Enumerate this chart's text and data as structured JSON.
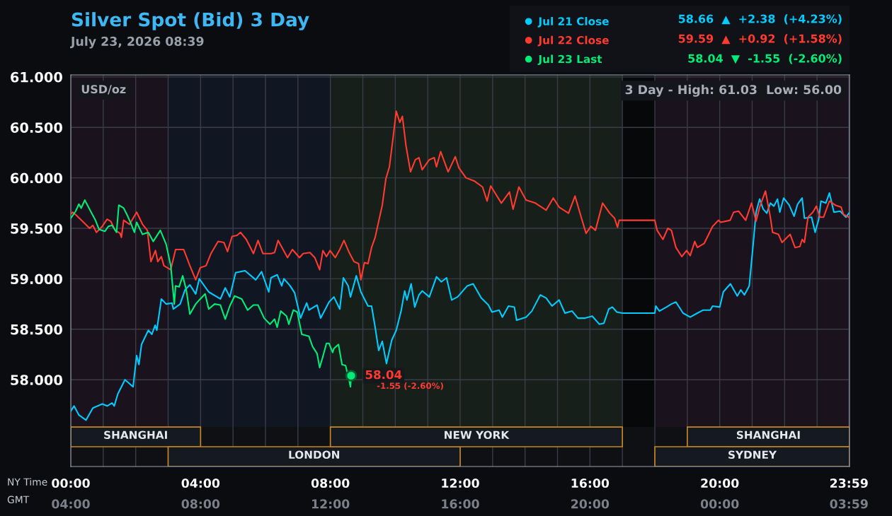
{
  "chart_data": {
    "type": "line",
    "title": "Silver Spot (Bid) 3 Day",
    "subtitle": "July 23, 2026 08:39",
    "xlabel": "NY Time",
    "x2label": "GMT",
    "annotations": [
      "USD/oz",
      "3 Day - High: 61.03  Low: 56.00",
      "58.66  ▲  +2.38  (+4.23%)",
      "59.59  ▲  +0.92  (+1.58%)",
      "58.04  ▼  -1.55  (-2.60%)",
      {
        "text": "58.04",
        "x": 8.64,
        "y": 58.04
      },
      "-1.55 (-2.60%)"
    ],
    "series": [
      {
        "name": "Jul 21 Close",
        "color": "#00ccff",
        "x": [
          0,
          0.1,
          0.25,
          0.47,
          0.68,
          0.97,
          1.12,
          1.27,
          1.34,
          1.45,
          1.67,
          1.92,
          2.03,
          2.1,
          2.18,
          2.39,
          2.5,
          2.6,
          2.65,
          2.79,
          2.94,
          3.12,
          3.16,
          3.37,
          3.52,
          3.67,
          3.85,
          3.96,
          4.25,
          4.61,
          4.76,
          4.9,
          5.08,
          5.37,
          5.7,
          5.88,
          6.1,
          6.17,
          6.36,
          6.5,
          6.57,
          6.76,
          6.9,
          7.08,
          7.27,
          7.34,
          7.59,
          7.7,
          7.96,
          8.11,
          8.29,
          8.4,
          8.55,
          8.62,
          8.8,
          8.94,
          9.16,
          9.27,
          9.38,
          9.49,
          9.6,
          9.73,
          9.89,
          10.03,
          10.18,
          10.29,
          10.36,
          10.49,
          10.6,
          10.73,
          10.83,
          11.05,
          11.27,
          11.42,
          11.58,
          11.74,
          11.92,
          12.22,
          12.4,
          12.65,
          12.87,
          12.98,
          13.2,
          13.3,
          13.49,
          13.67,
          13.74,
          14.03,
          14.21,
          14.47,
          14.65,
          14.83,
          15.05,
          15.23,
          15.45,
          15.63,
          15.85,
          16.07,
          16.29,
          16.43,
          16.58,
          16.69,
          16.83,
          17.0,
          18.0,
          18.03,
          18.14,
          18.36,
          18.51,
          18.65,
          18.87,
          19.09,
          19.31,
          19.49,
          19.71,
          19.78,
          20.0,
          20.11,
          20.33,
          20.54,
          20.65,
          20.76,
          20.91,
          21.01,
          21.12,
          21.23,
          21.34,
          21.45,
          21.56,
          21.67,
          21.78,
          21.85,
          21.97,
          22.14,
          22.29,
          22.4,
          22.54,
          22.61,
          22.83,
          22.94,
          23.05,
          23.12,
          23.27,
          23.38,
          23.52,
          23.71,
          23.89,
          23.98
        ],
        "values": [
          57.69,
          57.74,
          57.65,
          57.6,
          57.72,
          57.76,
          57.74,
          57.77,
          57.74,
          57.86,
          58.0,
          57.93,
          58.24,
          58.15,
          58.35,
          58.49,
          58.45,
          58.54,
          58.49,
          58.8,
          58.75,
          58.76,
          58.7,
          58.75,
          58.89,
          58.94,
          58.85,
          59.0,
          58.87,
          58.8,
          58.91,
          58.82,
          59.06,
          59.08,
          58.99,
          59.07,
          58.87,
          59.01,
          59.04,
          58.93,
          59.0,
          58.93,
          58.86,
          58.61,
          58.76,
          58.69,
          58.74,
          58.61,
          58.77,
          58.82,
          58.7,
          59.01,
          58.93,
          58.82,
          59.03,
          58.87,
          58.73,
          58.73,
          58.52,
          58.29,
          58.38,
          58.16,
          58.39,
          58.49,
          58.68,
          58.88,
          58.79,
          58.95,
          58.72,
          58.84,
          58.88,
          58.82,
          59.02,
          58.97,
          59.01,
          58.79,
          58.82,
          58.93,
          58.95,
          58.81,
          58.74,
          58.67,
          58.69,
          58.62,
          58.73,
          58.72,
          58.59,
          58.62,
          58.68,
          58.84,
          58.81,
          58.73,
          58.79,
          58.66,
          58.68,
          58.61,
          58.61,
          58.63,
          58.55,
          58.56,
          58.7,
          58.72,
          58.67,
          58.66,
          58.66,
          58.73,
          58.68,
          58.72,
          58.75,
          58.77,
          58.66,
          58.62,
          58.66,
          58.69,
          58.69,
          58.73,
          58.72,
          58.87,
          58.95,
          58.83,
          58.89,
          58.84,
          58.93,
          59.27,
          59.66,
          59.79,
          59.69,
          59.65,
          59.75,
          59.72,
          59.79,
          59.66,
          59.8,
          59.73,
          59.62,
          59.74,
          59.8,
          59.6,
          59.61,
          59.46,
          59.59,
          59.77,
          59.75,
          59.85,
          59.66,
          59.67,
          59.61,
          59.65
        ]
      },
      {
        "name": "Jul 22 Close",
        "color": "#ff3b30",
        "x": [
          0,
          0.06,
          0.17,
          0.36,
          0.58,
          0.68,
          0.79,
          0.97,
          1.12,
          1.23,
          1.37,
          1.52,
          1.56,
          1.63,
          1.81,
          1.92,
          2.03,
          2.21,
          2.36,
          2.47,
          2.61,
          2.68,
          2.79,
          2.87,
          3.08,
          3.23,
          3.3,
          3.48,
          3.67,
          3.85,
          3.99,
          4.17,
          4.32,
          4.54,
          4.72,
          4.83,
          4.97,
          5.12,
          5.23,
          5.41,
          5.63,
          5.77,
          5.92,
          6.17,
          6.28,
          6.39,
          6.68,
          6.83,
          7.05,
          7.16,
          7.37,
          7.52,
          7.67,
          7.77,
          7.88,
          7.99,
          8.15,
          8.29,
          8.42,
          8.58,
          8.73,
          8.87,
          8.94,
          9.05,
          9.16,
          9.27,
          9.38,
          9.49,
          9.6,
          9.71,
          9.82,
          9.93,
          10.03,
          10.14,
          10.22,
          10.33,
          10.47,
          10.62,
          10.73,
          10.83,
          11.05,
          11.2,
          11.27,
          11.4,
          11.63,
          11.85,
          11.96,
          12.18,
          12.43,
          12.69,
          12.83,
          12.94,
          13.27,
          13.52,
          13.63,
          13.81,
          14.03,
          14.32,
          14.65,
          14.87,
          15.05,
          15.34,
          15.54,
          15.74,
          15.88,
          16.03,
          16.17,
          16.39,
          16.61,
          16.76,
          16.85,
          16.9,
          17.0,
          18.0,
          18.07,
          18.25,
          18.4,
          18.51,
          18.65,
          18.83,
          18.98,
          19.09,
          19.23,
          19.31,
          19.52,
          19.78,
          19.96,
          20.03,
          20.32,
          20.43,
          20.58,
          20.8,
          20.98,
          21.12,
          21.23,
          21.41,
          21.56,
          21.63,
          21.81,
          21.92,
          22.17,
          22.32,
          22.47,
          22.54,
          22.61,
          22.72,
          22.87,
          22.98,
          23.09,
          23.2,
          23.38,
          23.56,
          23.74,
          23.81,
          23.98
        ],
        "values": [
          59.64,
          59.66,
          59.63,
          59.57,
          59.5,
          59.53,
          59.46,
          59.52,
          59.59,
          59.57,
          59.48,
          59.45,
          59.41,
          59.58,
          59.54,
          59.6,
          59.66,
          59.54,
          59.48,
          59.17,
          59.28,
          59.17,
          59.22,
          59.13,
          59.09,
          59.29,
          59.29,
          59.29,
          59.13,
          58.99,
          59.11,
          59.13,
          59.25,
          59.37,
          59.36,
          59.27,
          59.42,
          59.43,
          59.46,
          59.39,
          59.25,
          59.38,
          59.25,
          59.25,
          59.26,
          59.38,
          59.21,
          59.29,
          59.21,
          59.25,
          59.26,
          59.21,
          59.09,
          59.28,
          59.22,
          59.28,
          59.21,
          59.29,
          59.38,
          59.26,
          59.17,
          59.15,
          58.99,
          59.16,
          59.15,
          59.31,
          59.41,
          59.57,
          59.73,
          59.99,
          60.11,
          60.39,
          60.66,
          60.55,
          60.61,
          60.32,
          60.06,
          60.18,
          60.2,
          60.08,
          60.18,
          60.2,
          60.11,
          60.26,
          60.06,
          60.21,
          60.1,
          60.0,
          59.97,
          59.91,
          59.77,
          59.92,
          59.75,
          59.86,
          59.69,
          59.91,
          59.78,
          59.75,
          59.68,
          59.8,
          59.71,
          59.65,
          59.82,
          59.6,
          59.45,
          59.52,
          59.48,
          59.75,
          59.65,
          59.6,
          59.51,
          59.58,
          59.58,
          59.58,
          59.48,
          59.39,
          59.5,
          59.48,
          59.31,
          59.22,
          59.28,
          59.23,
          59.37,
          59.31,
          59.35,
          59.52,
          59.58,
          59.56,
          59.58,
          59.66,
          59.67,
          59.58,
          59.75,
          59.57,
          59.71,
          59.87,
          59.61,
          59.46,
          59.44,
          59.36,
          59.44,
          59.31,
          59.32,
          59.39,
          59.36,
          59.61,
          59.66,
          59.72,
          59.61,
          59.61,
          59.77,
          59.73,
          59.71,
          59.64,
          59.61
        ]
      },
      {
        "name": "Jul 23 Last",
        "color": "#00ee77",
        "x": [
          0,
          0.15,
          0.25,
          0.32,
          0.43,
          0.61,
          0.76,
          0.87,
          1.05,
          1.16,
          1.27,
          1.41,
          1.48,
          1.63,
          1.74,
          1.85,
          1.96,
          2.03,
          2.21,
          2.39,
          2.54,
          2.76,
          2.94,
          3.08,
          3.19,
          3.23,
          3.34,
          3.45,
          3.56,
          3.67,
          3.85,
          3.96,
          4.14,
          4.25,
          4.43,
          4.61,
          4.76,
          4.9,
          5.05,
          5.27,
          5.45,
          5.63,
          5.77,
          5.96,
          6.14,
          6.28,
          6.36,
          6.47,
          6.65,
          6.72,
          6.86,
          6.98,
          7.12,
          7.34,
          7.45,
          7.59,
          7.67,
          7.77,
          7.88,
          7.96,
          8.07,
          8.11,
          8.25,
          8.36,
          8.47,
          8.58,
          8.62,
          8.64
        ],
        "values": [
          59.6,
          59.67,
          59.74,
          59.7,
          59.78,
          59.67,
          59.58,
          59.49,
          59.47,
          59.52,
          59.53,
          59.46,
          59.73,
          59.7,
          59.63,
          59.55,
          59.46,
          59.56,
          59.44,
          59.46,
          59.37,
          59.48,
          59.34,
          59.13,
          58.75,
          58.93,
          58.92,
          59.03,
          58.89,
          58.65,
          58.75,
          58.79,
          58.85,
          58.7,
          58.75,
          58.74,
          58.6,
          58.73,
          58.83,
          58.8,
          58.69,
          58.74,
          58.74,
          58.61,
          58.55,
          58.6,
          58.52,
          58.68,
          58.63,
          58.55,
          58.69,
          58.67,
          58.45,
          58.43,
          58.33,
          58.26,
          58.12,
          58.23,
          58.36,
          58.36,
          58.27,
          58.31,
          58.35,
          58.15,
          58.14,
          57.99,
          57.93,
          58.04
        ]
      }
    ],
    "xlim": [
      0,
      24
    ],
    "ylim": [
      57.14,
      61.02
    ],
    "xticks": [
      {
        "value": 0,
        "label": "00:00"
      },
      {
        "value": 1,
        "label": null
      },
      {
        "value": 2,
        "label": null
      },
      {
        "value": 3,
        "label": null
      },
      {
        "value": 4,
        "label": "04:00"
      },
      {
        "value": 5,
        "label": null
      },
      {
        "value": 6,
        "label": null
      },
      {
        "value": 7,
        "label": null
      },
      {
        "value": 8,
        "label": "08:00"
      },
      {
        "value": 9,
        "label": null
      },
      {
        "value": 10,
        "label": null
      },
      {
        "value": 11,
        "label": null
      },
      {
        "value": 12,
        "label": "12:00"
      },
      {
        "value": 13,
        "label": null
      },
      {
        "value": 14,
        "label": null
      },
      {
        "value": 15,
        "label": null
      },
      {
        "value": 16,
        "label": "16:00"
      },
      {
        "value": 17,
        "label": null
      },
      {
        "value": 18,
        "label": null
      },
      {
        "value": 19,
        "label": null
      },
      {
        "value": 20,
        "label": "20:00"
      },
      {
        "value": 21,
        "label": null
      },
      {
        "value": 22,
        "label": null
      },
      {
        "value": 23,
        "label": null
      },
      {
        "value": 23.983,
        "label": "23:59"
      }
    ],
    "x2lim": [
      "2026-07-23T04:00",
      "2026-07-24T04:00"
    ],
    "x2ticks": [
      {
        "value": "2026-07-23T04:00",
        "label": "04:00"
      },
      {
        "value": "2026-07-23T08:00",
        "label": "08:00"
      },
      {
        "value": "2026-07-23T12:00",
        "label": "12:00"
      },
      {
        "value": "2026-07-23T16:00",
        "label": "16:00"
      },
      {
        "value": "2026-07-23T20:00",
        "label": "20:00"
      },
      {
        "value": "2026-07-24T00:00",
        "label": "00:00"
      },
      {
        "value": "2026-07-24T03:59",
        "label": "03:59"
      }
    ],
    "yticks": [
      {
        "value": 58,
        "label": "58.000"
      },
      {
        "value": 58.5,
        "label": "58.500"
      },
      {
        "value": 59,
        "label": "59.000"
      },
      {
        "value": 59.5,
        "label": "59.500"
      },
      {
        "value": 60,
        "label": "60.000"
      },
      {
        "value": 60.5,
        "label": "60.500"
      },
      {
        "value": 61,
        "label": "61.000"
      }
    ],
    "bands": [
      {
        "axis": "x",
        "from": 0,
        "to": 3,
        "color": "#1a121d"
      },
      {
        "axis": "x",
        "from": 3,
        "to": 8,
        "color": "#111722"
      },
      {
        "axis": "x",
        "from": 8,
        "to": 17,
        "color": "#161f19"
      },
      {
        "axis": "x",
        "from": 17,
        "to": 18,
        "color": "#070809"
      },
      {
        "axis": "x",
        "from": 18,
        "to": 24,
        "color": "#1a121d"
      },
      {
        "axis": "x",
        "from": 0,
        "to": 4,
        "label": "SHANGHAI",
        "color": "#151922"
      },
      {
        "axis": "x",
        "from": 3,
        "to": 12,
        "label": "LONDON",
        "color": "#151922"
      },
      {
        "axis": "x",
        "from": 8,
        "to": 17,
        "label": "NEW YORK",
        "color": "#151922"
      },
      {
        "axis": "x",
        "from": 19,
        "to": 24,
        "label": "SHANGHAI",
        "color": "#151922"
      },
      {
        "axis": "x",
        "from": 18,
        "to": 24,
        "label": "SYDNEY",
        "color": "#151922"
      }
    ],
    "grid": true,
    "legend": "top right",
    "marker": "none",
    "line_style": "solid"
  }
}
